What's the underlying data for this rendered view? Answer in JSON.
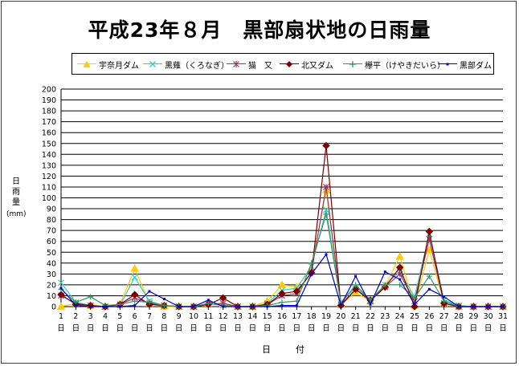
{
  "title": "平成23年８月　黒部扇状地の日雨量",
  "chart_data": {
    "type": "line",
    "title": "平成23年８月　黒部扇状地の日雨量",
    "xlabel": "日　付",
    "ylabel": "日雨量",
    "yunit": "(mm)",
    "ylim": [
      0,
      200
    ],
    "ytick_step": 10,
    "grid": true,
    "legend_position": "top",
    "x": [
      1,
      2,
      3,
      4,
      5,
      6,
      7,
      8,
      9,
      10,
      11,
      12,
      13,
      14,
      15,
      16,
      17,
      18,
      19,
      20,
      21,
      22,
      23,
      24,
      25,
      26,
      27,
      28,
      29,
      30,
      31
    ],
    "x_suffix": "日",
    "series": [
      {
        "name": "宇奈月ダム",
        "color": "#ffcc00",
        "marker": "triangle",
        "values": [
          0,
          3,
          1,
          0,
          2,
          35,
          3,
          0,
          0,
          0,
          2,
          2,
          0,
          0,
          5,
          20,
          18,
          35,
          107,
          2,
          13,
          5,
          19,
          46,
          1,
          52,
          3,
          0,
          0,
          0,
          0
        ]
      },
      {
        "name": "黒薙（くろなぎ）",
        "color": "#33cccc",
        "marker": "x",
        "values": [
          22,
          4,
          1,
          0,
          1,
          27,
          5,
          1,
          0,
          0,
          3,
          1,
          0,
          0,
          3,
          15,
          17,
          37,
          89,
          4,
          18,
          6,
          20,
          32,
          9,
          67,
          6,
          1,
          0,
          0,
          0
        ]
      },
      {
        "name": "猫　又",
        "color": "#993366",
        "marker": "star",
        "values": [
          10,
          3,
          1,
          0,
          2,
          8,
          3,
          1,
          0,
          0,
          2,
          3,
          0,
          0,
          2,
          10,
          12,
          32,
          110,
          2,
          16,
          5,
          18,
          30,
          5,
          62,
          3,
          0,
          0,
          0,
          0
        ]
      },
      {
        "name": "北又ダム",
        "color": "#800000",
        "marker": "diamond",
        "values": [
          11,
          2,
          1,
          0,
          2,
          11,
          2,
          1,
          0,
          0,
          2,
          8,
          0,
          0,
          2,
          12,
          14,
          31,
          148,
          1,
          16,
          6,
          18,
          36,
          0,
          69,
          3,
          0,
          0,
          0,
          0
        ]
      },
      {
        "name": "欅平（けやきだいら）",
        "color": "#339966",
        "marker": "plus",
        "values": [
          16,
          4,
          9,
          1,
          2,
          5,
          4,
          1,
          0,
          0,
          3,
          1,
          0,
          0,
          1,
          4,
          5,
          40,
          85,
          3,
          20,
          6,
          20,
          20,
          8,
          28,
          5,
          0,
          0,
          0,
          0
        ]
      },
      {
        "name": "黒部ダム",
        "color": "#0000cc",
        "marker": "square",
        "values": [
          17,
          1,
          0,
          0,
          0,
          1,
          14,
          7,
          0,
          0,
          6,
          0,
          0,
          0,
          0,
          1,
          1,
          30,
          48,
          1,
          28,
          2,
          32,
          25,
          2,
          16,
          9,
          0,
          0,
          0,
          0
        ]
      }
    ]
  }
}
